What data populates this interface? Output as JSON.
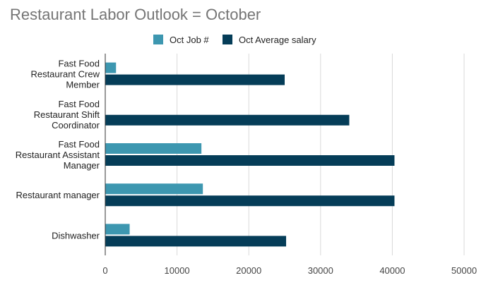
{
  "chart_data": {
    "type": "bar",
    "orientation": "horizontal",
    "title": "Restaurant Labor Outlook = October",
    "categories": [
      [
        "Fast Food",
        "Restaurant Crew",
        "Member"
      ],
      [
        "Fast Food",
        "Restaurant Shift",
        "Coordinator"
      ],
      [
        "Fast Food",
        "Restaurant Assistant",
        "Manager"
      ],
      [
        "Restaurant manager"
      ],
      [
        "Dishwasher"
      ]
    ],
    "series": [
      {
        "name": "Oct Job #",
        "color": "#3d97b0",
        "values": [
          1500,
          0,
          13400,
          13600,
          3400
        ]
      },
      {
        "name": "Oct Average salary",
        "color": "#053d58",
        "values": [
          25000,
          34000,
          40300,
          40300,
          25200
        ]
      }
    ],
    "xlim": [
      0,
      50000
    ],
    "xticks": [
      "0",
      "10000",
      "20000",
      "30000",
      "40000",
      "50000"
    ],
    "grid": true,
    "legend_position": "top"
  }
}
